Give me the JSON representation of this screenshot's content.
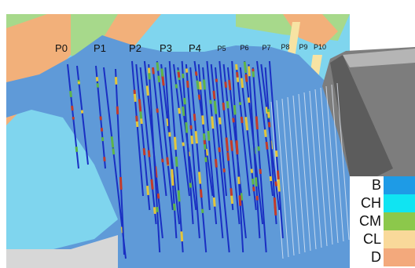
{
  "profiles": [
    {
      "label": "P0",
      "small": false
    },
    {
      "label": "P1",
      "small": false
    },
    {
      "label": "P2",
      "small": false
    },
    {
      "label": "P3",
      "small": false
    },
    {
      "label": "P4",
      "small": false
    },
    {
      "label": "P5",
      "small": true
    },
    {
      "label": "P6",
      "small": true
    },
    {
      "label": "P7",
      "small": true
    },
    {
      "label": "P8",
      "small": true
    },
    {
      "label": "P9",
      "small": true
    },
    {
      "label": "P10",
      "small": true
    }
  ],
  "legend": [
    {
      "label": "B",
      "color": "#1e9be6"
    },
    {
      "label": "CH",
      "color": "#10e4f2"
    },
    {
      "label": "CM",
      "color": "#8cc84b"
    },
    {
      "label": "CL",
      "color": "#f9d99a"
    },
    {
      "label": "D",
      "color": "#f3a97c"
    }
  ],
  "colors": {
    "ground_cyan": "#7fd5ee",
    "ground_blue": "#5f9ad8",
    "band_green": "#a7d98b",
    "band_orange": "#f2b07a",
    "band_yellow": "#f7e3a3",
    "dam_gray": "#8a8a8a",
    "drill_line": "#1a2fc2",
    "segment_red": "#c23a2a",
    "segment_green": "#5db34a",
    "segment_yellow": "#e3c53a"
  }
}
